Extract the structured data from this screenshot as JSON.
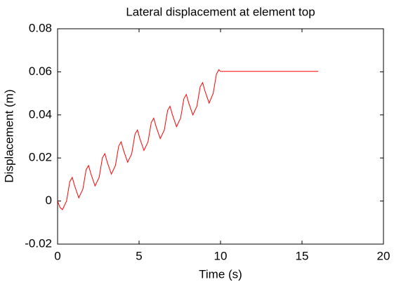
{
  "chart_data": {
    "type": "line",
    "title": "Lateral displacement at element top",
    "xlabel": "Time (s)",
    "ylabel": "Displacement (m)",
    "x": [
      0,
      0.15,
      0.3,
      0.55,
      0.75,
      0.9,
      1.05,
      1.3,
      1.55,
      1.75,
      1.9,
      2.05,
      2.3,
      2.55,
      2.75,
      2.9,
      3.05,
      3.3,
      3.55,
      3.75,
      3.9,
      4.05,
      4.3,
      4.55,
      4.75,
      4.9,
      5.05,
      5.3,
      5.55,
      5.75,
      5.9,
      6.05,
      6.3,
      6.55,
      6.75,
      6.9,
      7.05,
      7.3,
      7.55,
      7.75,
      7.9,
      8.05,
      8.3,
      8.55,
      8.75,
      8.9,
      9.05,
      9.3,
      9.55,
      9.75,
      9.9,
      10.0,
      16
    ],
    "series": [
      {
        "color": "#ff0000",
        "values": [
          0,
          -0.003,
          -0.004,
          0.0,
          0.009,
          0.011,
          0.007,
          0.0015,
          0.0055,
          0.0145,
          0.0165,
          0.0125,
          0.007,
          0.011,
          0.02,
          0.022,
          0.018,
          0.0125,
          0.0165,
          0.0255,
          0.0275,
          0.0235,
          0.018,
          0.022,
          0.031,
          0.033,
          0.029,
          0.0235,
          0.0275,
          0.0365,
          0.0385,
          0.0345,
          0.029,
          0.033,
          0.042,
          0.044,
          0.04,
          0.0345,
          0.0385,
          0.0475,
          0.0495,
          0.0455,
          0.04,
          0.044,
          0.053,
          0.055,
          0.051,
          0.0455,
          0.05,
          0.059,
          0.061,
          0.0602,
          0.0602
        ]
      }
    ],
    "xlim": [
      0,
      20
    ],
    "xticks": [
      0,
      5,
      10,
      15,
      20
    ],
    "ylim": [
      -0.02,
      0.08
    ],
    "yticks": [
      -0.02,
      0,
      0.02,
      0.04,
      0.06,
      0.08
    ]
  }
}
